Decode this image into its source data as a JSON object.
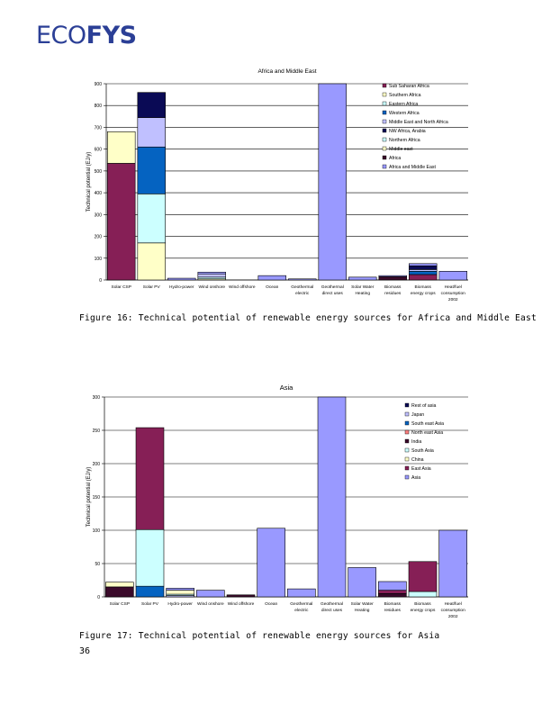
{
  "logo": {
    "text_a": "ECO",
    "text_b": "FYS"
  },
  "page_number": "36",
  "captions": {
    "fig16": "Figure 16: Technical potential of renewable energy sources for Africa and Middle East",
    "fig17": "Figure 17: Technical potential of renewable energy sources for Asia"
  },
  "chart_data": [
    {
      "type": "bar",
      "stacked": true,
      "title": "Africa and Middle East",
      "ylabel": "Technical potential (EJ/y)",
      "xlabel": "",
      "ylim": [
        0,
        900
      ],
      "yticks": [
        0,
        100,
        200,
        300,
        400,
        500,
        600,
        700,
        800,
        900
      ],
      "grid": true,
      "legend_position": "top-right",
      "categories": [
        "Solar CSP",
        "Solar PV",
        "Hydro-power",
        "Wind onshore",
        "Wind offshore",
        "Ocean",
        "Geothermal electric",
        "Geothermal direct uses",
        "Solar Water Heating",
        "Biomass residues",
        "Biomass energy crops",
        "Heat/fuel consumption 2002"
      ],
      "category_lines": [
        [
          "Solar CSP"
        ],
        [
          "Solar PV"
        ],
        [
          "Hydro-power"
        ],
        [
          "Wind onshore"
        ],
        [
          "Wind offshore"
        ],
        [
          "Ocean"
        ],
        [
          "Geothermal",
          "electric"
        ],
        [
          "Geothermal",
          "direct uses"
        ],
        [
          "Solar Water",
          "Heating"
        ],
        [
          "Biomass",
          "residues"
        ],
        [
          "Biomass",
          "energy crops"
        ],
        [
          "Heat/fuel",
          "consumption",
          "2002"
        ]
      ],
      "series": [
        {
          "name": "Sub Saharan Africa",
          "color": "#861f56",
          "values": [
            535,
            0,
            0,
            0,
            0,
            0,
            0,
            0,
            0,
            0,
            25,
            0
          ]
        },
        {
          "name": "Southern Africa",
          "color": "#ffffc8",
          "values": [
            0,
            170,
            0,
            5,
            0,
            0,
            0,
            0,
            0,
            0,
            0,
            0
          ]
        },
        {
          "name": "Eastern Africa",
          "color": "#ccffff",
          "values": [
            0,
            225,
            0,
            8,
            0,
            0,
            0,
            0,
            0,
            0,
            0,
            0
          ]
        },
        {
          "name": "Western Africa",
          "color": "#0563c1",
          "values": [
            0,
            215,
            0,
            0,
            0,
            0,
            0,
            0,
            0,
            0,
            15,
            0
          ]
        },
        {
          "name": "Middle East and North Africa",
          "color": "#c0c0ff",
          "values": [
            0,
            135,
            0,
            15,
            0,
            0,
            0,
            0,
            0,
            0,
            8,
            0
          ]
        },
        {
          "name": "NW Africa, Arabia",
          "color": "#0a0a55",
          "values": [
            0,
            115,
            0,
            0,
            0,
            0,
            0,
            0,
            0,
            0,
            17,
            0
          ]
        },
        {
          "name": "Northern Africa",
          "color": "#ccffff",
          "values": [
            0,
            0,
            0,
            0,
            0,
            0,
            0,
            0,
            0,
            0,
            0,
            0
          ]
        },
        {
          "name": "Middle east",
          "color": "#ffffc8",
          "values": [
            145,
            0,
            0,
            0,
            0,
            0,
            0,
            0,
            0,
            0,
            0,
            0
          ]
        },
        {
          "name": "Africa",
          "color": "#3a0a2a",
          "values": [
            0,
            0,
            0,
            0,
            0,
            0,
            0,
            0,
            0,
            15,
            0,
            0
          ]
        },
        {
          "name": "Africa and Middle East",
          "color": "#9999ff",
          "values": [
            0,
            0,
            8,
            8,
            0,
            20,
            5,
            900,
            13,
            5,
            10,
            40
          ]
        }
      ]
    },
    {
      "type": "bar",
      "stacked": true,
      "title": "Asia",
      "ylabel": "Technical potential (EJ/y)",
      "xlabel": "",
      "ylim": [
        0,
        300
      ],
      "yticks": [
        0,
        50,
        100,
        150,
        200,
        250,
        300
      ],
      "grid": true,
      "legend_position": "top-right",
      "categories": [
        "Solar CSP",
        "Solar PV",
        "Hydro-power",
        "Wind onshore",
        "Wind offshore",
        "Ocean",
        "Geothermal electric",
        "Geothermal direct uses",
        "Solar Water Heating",
        "Biomass residues",
        "Biomass energy crops",
        "Heat/fuel consumption 2002"
      ],
      "category_lines": [
        [
          "Solar CSP"
        ],
        [
          "Solar PV"
        ],
        [
          "Hydro-power"
        ],
        [
          "Wind onshore"
        ],
        [
          "Wind offshore"
        ],
        [
          "Ocean"
        ],
        [
          "Geothermal",
          "electric"
        ],
        [
          "Geothermal",
          "direct uses"
        ],
        [
          "Solar Water",
          "Heating"
        ],
        [
          "Biomass",
          "residues"
        ],
        [
          "Biomass",
          "energy crops"
        ],
        [
          "Heat/fuel",
          "consumption",
          "2002"
        ]
      ],
      "series": [
        {
          "name": "Rest of asia",
          "color": "#0a0a55",
          "values": [
            0,
            0,
            0,
            0,
            0,
            0,
            0,
            0,
            0,
            0,
            0,
            0
          ]
        },
        {
          "name": "Japan",
          "color": "#c0c0ff",
          "values": [
            0,
            0,
            2,
            0,
            0,
            0,
            0,
            0,
            0,
            0,
            0,
            0
          ]
        },
        {
          "name": "South east Asia",
          "color": "#0563c1",
          "values": [
            0,
            16,
            0,
            0,
            0,
            0,
            0,
            0,
            0,
            0,
            0,
            0
          ]
        },
        {
          "name": "North east Asia",
          "color": "#ff8080",
          "values": [
            0,
            0,
            0,
            0,
            0,
            0,
            0,
            0,
            0,
            0,
            0,
            0
          ]
        },
        {
          "name": "India",
          "color": "#3a0a2a",
          "values": [
            15,
            0,
            0,
            0,
            3,
            0,
            0,
            0,
            0,
            5,
            0,
            0
          ]
        },
        {
          "name": "South Asia",
          "color": "#ccffff",
          "values": [
            0,
            85,
            2,
            0,
            0,
            0,
            0,
            0,
            0,
            0,
            8,
            0
          ]
        },
        {
          "name": "China",
          "color": "#ffffc8",
          "values": [
            7,
            0,
            6,
            0,
            0,
            0,
            0,
            0,
            0,
            0,
            0,
            0
          ]
        },
        {
          "name": "East Asia",
          "color": "#861f56",
          "values": [
            0,
            153,
            0,
            0,
            0,
            0,
            0,
            0,
            0,
            5,
            45,
            0
          ]
        },
        {
          "name": "Asia",
          "color": "#9999ff",
          "values": [
            0,
            0,
            3,
            10,
            0,
            103,
            12,
            300,
            44,
            13,
            0,
            100
          ]
        }
      ]
    }
  ]
}
